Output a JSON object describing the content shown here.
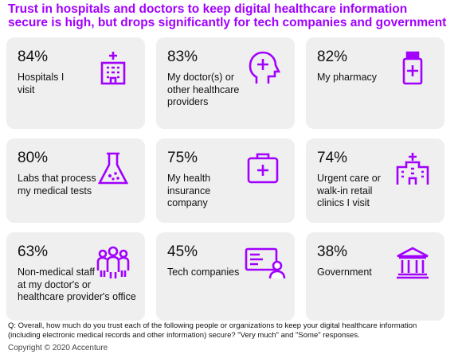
{
  "title_line1": "Trust in hospitals and doctors to keep digital healthcare information",
  "title_line2": "secure is high, but drops significantly for tech companies and government",
  "cards": [
    {
      "pct": "84%",
      "label": [
        "Hospitals I",
        "visit"
      ],
      "icon": "hospital-building-icon"
    },
    {
      "pct": "83%",
      "label": [
        "My doctor(s) or",
        "other healthcare",
        "providers"
      ],
      "icon": "head-medical-cross-icon"
    },
    {
      "pct": "82%",
      "label": [
        "My pharmacy"
      ],
      "icon": "medicine-bottle-icon"
    },
    {
      "pct": "80%",
      "label": [
        "Labs that process",
        "my medical tests"
      ],
      "icon": "lab-flask-icon"
    },
    {
      "pct": "75%",
      "label": [
        "My health",
        "insurance",
        "company"
      ],
      "icon": "medical-kit-icon"
    },
    {
      "pct": "74%",
      "label": [
        "Urgent care or",
        "walk-in retail",
        "clinics I visit"
      ],
      "icon": "clinic-building-icon"
    },
    {
      "pct": "63%",
      "label": [
        "Non-medical staff",
        "at my doctor's or",
        "healthcare provider's office"
      ],
      "icon": "staff-group-icon"
    },
    {
      "pct": "45%",
      "label": [
        "Tech companies"
      ],
      "icon": "tech-profile-icon"
    },
    {
      "pct": "38%",
      "label": [
        "Government"
      ],
      "icon": "government-building-icon"
    }
  ],
  "footnote_line1": "Q: Overall, how much do you trust each of the following people or organizations to keep your digital healthcare information",
  "footnote_line2": "(including electronic medical records and other information) secure? \"Very much\" and \"Some\" responses.",
  "copyright": "Copyright © 2020 Accenture",
  "colors": {
    "accent": "#a100ff",
    "card_bg": "#efefef"
  }
}
